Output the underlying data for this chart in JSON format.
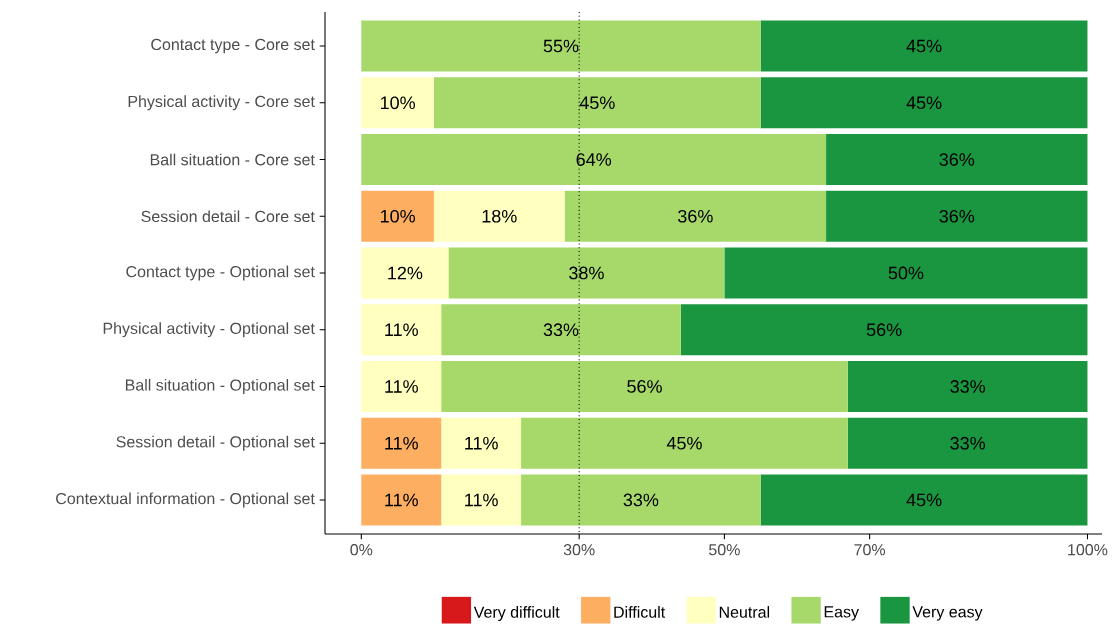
{
  "chart_data": {
    "type": "bar",
    "orientation": "horizontal",
    "stacked": true,
    "categories": [
      "Contact type - Core set",
      "Physical activity - Core set",
      "Ball situation - Core set",
      "Session detail - Core set",
      "Contact type - Optional set",
      "Physical activity - Optional set",
      "Ball situation - Optional set",
      "Session detail - Optional set",
      "Contextual information - Optional set"
    ],
    "series": [
      {
        "name": "Very difficult",
        "color": "#d7191c",
        "values": [
          null,
          null,
          null,
          null,
          null,
          null,
          null,
          null,
          null
        ]
      },
      {
        "name": "Difficult",
        "color": "#fdae61",
        "values": [
          null,
          null,
          null,
          10,
          null,
          null,
          null,
          11,
          11
        ],
        "value_labels": [
          null,
          null,
          null,
          "10%",
          null,
          null,
          null,
          "11%",
          "11%"
        ]
      },
      {
        "name": "Neutral",
        "color": "#ffffbf",
        "values": [
          null,
          10,
          null,
          18,
          12,
          11,
          11,
          11,
          11
        ],
        "value_labels": [
          null,
          "10%",
          null,
          "18%",
          "12%",
          "11%",
          "11%",
          "11%",
          "11%"
        ]
      },
      {
        "name": "Easy",
        "color": "#a6d96a",
        "values": [
          55,
          45,
          64,
          36,
          38,
          33,
          56,
          45,
          33
        ],
        "value_labels": [
          "55%",
          "45%",
          "64%",
          "36%",
          "38%",
          "33%",
          "56%",
          "45%",
          "33%"
        ]
      },
      {
        "name": "Very easy",
        "color": "#1a9641",
        "values": [
          45,
          45,
          36,
          36,
          50,
          56,
          33,
          33,
          45
        ],
        "value_labels": [
          "45%",
          "45%",
          "36%",
          "36%",
          "50%",
          "56%",
          "33%",
          "33%",
          "45%"
        ]
      }
    ],
    "xlim": [
      -5,
      102
    ],
    "xticks": [
      {
        "value": 0,
        "label": "0%"
      },
      {
        "value": 30,
        "label": "30%"
      },
      {
        "value": 50,
        "label": "50%"
      },
      {
        "value": 70,
        "label": "70%"
      },
      {
        "value": 100,
        "label": "100%"
      }
    ],
    "ref_lines": [
      {
        "axis": "x",
        "value": 30,
        "line_style": "dotted",
        "color": "#000000"
      }
    ],
    "grid": false,
    "legend": "bottom"
  }
}
